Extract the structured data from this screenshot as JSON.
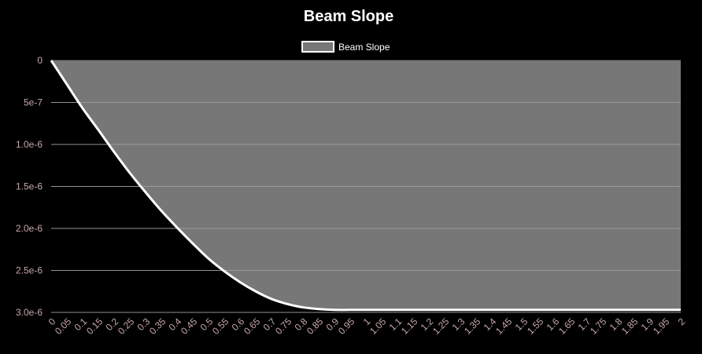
{
  "chart_data": {
    "type": "area",
    "title": "Beam Slope",
    "legend": {
      "position": "top",
      "entries": [
        "Beam Slope"
      ]
    },
    "xlabel": "",
    "ylabel": "",
    "x": [
      0,
      0.05,
      0.1,
      0.15,
      0.2,
      0.25,
      0.3,
      0.35,
      0.4,
      0.45,
      0.5,
      0.55,
      0.6,
      0.65,
      0.7,
      0.75,
      0.8,
      0.85,
      0.9,
      0.95,
      1,
      1.05,
      1.1,
      1.15,
      1.2,
      1.25,
      1.3,
      1.35,
      1.4,
      1.45,
      1.5,
      1.55,
      1.6,
      1.65,
      1.7,
      1.75,
      1.8,
      1.85,
      1.9,
      1.95,
      2
    ],
    "x_tick_labels": [
      "0",
      "0.05",
      "0.1",
      "0.15",
      "0.2",
      "0.25",
      "0.3",
      "0.35",
      "0.4",
      "0.45",
      "0.5",
      "0.55",
      "0.6",
      "0.65",
      "0.7",
      "0.75",
      "0.8",
      "0.85",
      "0.9",
      "0.95",
      "1",
      "1.05",
      "1.1",
      "1.15",
      "1.2",
      "1.25",
      "1.3",
      "1.35",
      "1.4",
      "1.45",
      "1.5",
      "1.55",
      "1.6",
      "1.65",
      "1.7",
      "1.75",
      "1.8",
      "1.85",
      "1.9",
      "1.95",
      "2"
    ],
    "y_ticks": [
      0,
      5e-07,
      1e-06,
      1.5e-06,
      2e-06,
      2.5e-06,
      3e-06
    ],
    "y_tick_labels": [
      "0",
      "5e-7",
      "1.0e-6",
      "1.5e-6",
      "2.0e-6",
      "2.5e-6",
      "3.0e-6"
    ],
    "y_reversed": true,
    "ylim": [
      0,
      3e-06
    ],
    "grid": true,
    "series": [
      {
        "name": "Beam Slope",
        "line_color": "#ffffff",
        "fill_color": "#777777",
        "values": [
          0,
          2.85e-07,
          5.7e-07,
          8.27e-07,
          1.09e-06,
          1.34e-06,
          1.57e-06,
          1.79e-06,
          1.99e-06,
          2.18e-06,
          2.36e-06,
          2.51e-06,
          2.64e-06,
          2.75e-06,
          2.84e-06,
          2.9e-06,
          2.94e-06,
          2.96e-06,
          2.97e-06,
          2.97e-06,
          2.97e-06,
          2.97e-06,
          2.97e-06,
          2.97e-06,
          2.97e-06,
          2.97e-06,
          2.97e-06,
          2.97e-06,
          2.97e-06,
          2.97e-06,
          2.97e-06,
          2.97e-06,
          2.97e-06,
          2.97e-06,
          2.97e-06,
          2.97e-06,
          2.97e-06,
          2.97e-06,
          2.97e-06,
          2.97e-06,
          2.97e-06
        ]
      }
    ]
  }
}
